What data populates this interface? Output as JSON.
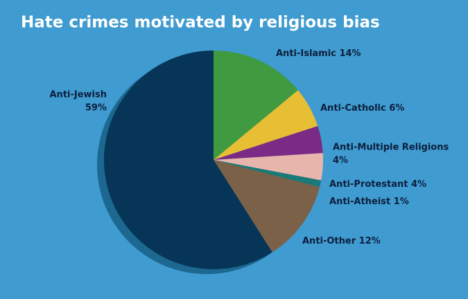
{
  "chart_data": {
    "type": "pie",
    "title": "Hate crimes motivated by religious bias",
    "categories": [
      "Anti-Islamic",
      "Anti-Catholic",
      "Anti-Multiple Religions",
      "Anti-Protestant",
      "Anti-Atheist",
      "Anti-Other",
      "Anti-Jewish"
    ],
    "values": [
      14,
      6,
      4,
      4,
      1,
      12,
      59
    ],
    "value_labels": [
      "14%",
      "6%",
      "4%",
      "4%",
      "1%",
      "12%",
      "59%"
    ],
    "colors": [
      "#3f9a40",
      "#e6bf35",
      "#7b2a85",
      "#e8b5ad",
      "#1a7a78",
      "#7a6148",
      "#063558"
    ]
  }
}
